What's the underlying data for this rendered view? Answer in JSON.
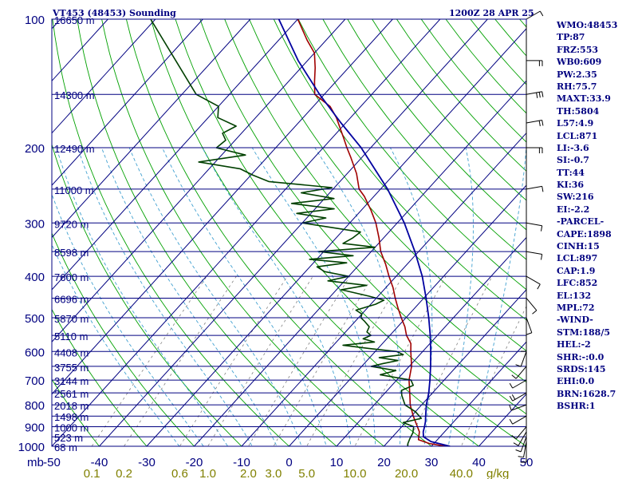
{
  "header": {
    "title_left": "VT453 (48453) Sounding",
    "title_right": "1200Z 28 APR 25"
  },
  "stats": [
    "WMO:48453",
    "TP:87",
    "FRZ:553",
    "WB0:609",
    "PW:2.35",
    "RH:75.7",
    "MAXT:33.9",
    "TH:5804",
    "L57:4.9",
    "LCL:871",
    "LI:-3.6",
    "SI:-0.7",
    "TT:44",
    "KI:36",
    "SW:216",
    "EI:-2.2",
    "-PARCEL-",
    "CAPE:1898",
    "CINH:15",
    "LCL:897",
    "CAP:1.9",
    "LFC:852",
    "EL:132",
    "MPL:72",
    "-WIND-",
    "STM:188/5",
    "HEL:-2",
    "SHR:-:0.0",
    "SRDS:145",
    "EHI:0.0",
    "BRN:1628.7",
    "BSHR:1"
  ],
  "colors": {
    "background": "#ffffff",
    "isobar": "#000080",
    "isotherm": "#000080",
    "dry_adiabat": "#00a000",
    "moist_adiabat": "#40a0d0",
    "mixing_ratio": "#808080",
    "temperature": "#a00000",
    "dewpoint": "#004000",
    "parcel": "#0000a0",
    "wind": "#000000",
    "label": "#000080",
    "mixing_label": "#808000"
  },
  "chart_data": {
    "type": "line",
    "title": "VT453 (48453) Sounding",
    "subtitle": "1200Z 28 APR 25",
    "xlabel_unit": "C",
    "ylabel_unit": "mb",
    "skew_t": true,
    "log_pressure_axis": true,
    "xlim": [
      -50,
      50
    ],
    "ylim": [
      1000,
      100
    ],
    "x_ticks": [
      -50,
      -40,
      -30,
      -20,
      -10,
      0,
      10,
      20,
      30,
      40,
      50
    ],
    "x_tick_labels": [
      "-50",
      "-40",
      "-30",
      "-20",
      "-10",
      "0",
      "10",
      "20",
      "30",
      "40",
      "50"
    ],
    "pressure_ticks": [
      100,
      200,
      300,
      400,
      500,
      600,
      700,
      800,
      900,
      1000
    ],
    "pressure_tick_labels": [
      "100",
      "200",
      "300",
      "400",
      "500",
      "600",
      "700",
      "800",
      "900",
      "1000"
    ],
    "height_levels": [
      {
        "p": 100,
        "label": "16650 m"
      },
      {
        "p": 150,
        "label": "14300 m"
      },
      {
        "p": 200,
        "label": "12490 m"
      },
      {
        "p": 250,
        "label": "11000 m"
      },
      {
        "p": 300,
        "label": "9720 m"
      },
      {
        "p": 350,
        "label": "8598 m"
      },
      {
        "p": 400,
        "label": "7600 m"
      },
      {
        "p": 450,
        "label": "6696 m"
      },
      {
        "p": 500,
        "label": "5870 m"
      },
      {
        "p": 550,
        "label": "5110 m"
      },
      {
        "p": 600,
        "label": "4408 m"
      },
      {
        "p": 650,
        "label": "3755 m"
      },
      {
        "p": 700,
        "label": "3144 m"
      },
      {
        "p": 750,
        "label": "2561 m"
      },
      {
        "p": 800,
        "label": "2018 m"
      },
      {
        "p": 850,
        "label": "1498 m"
      },
      {
        "p": 900,
        "label": "1000 m"
      },
      {
        "p": 950,
        "label": "523 m"
      },
      {
        "p": 1000,
        "label": "68 m"
      }
    ],
    "mixing_ratio_values": [
      0.1,
      0.2,
      0.6,
      1.0,
      2.0,
      3.0,
      5.0,
      10.0,
      20.0,
      40.0
    ],
    "mixing_ratio_labels": [
      "0.1",
      "0.2",
      "0.6",
      "1.0",
      "2.0",
      "3.0",
      "5.0",
      "10.0",
      "20.0",
      "40.0"
    ],
    "mixing_ratio_unit": "g/kg",
    "series": [
      {
        "key": "temperature",
        "points": [
          [
            1000,
            33.0
          ],
          [
            985,
            29.0
          ],
          [
            965,
            26.0
          ],
          [
            950,
            25.5
          ],
          [
            925,
            24.7
          ],
          [
            900,
            23.3
          ],
          [
            850,
            20.4
          ],
          [
            800,
            17.6
          ],
          [
            750,
            15.2
          ],
          [
            700,
            12.6
          ],
          [
            650,
            10.5
          ],
          [
            600,
            7.5
          ],
          [
            575,
            6.0
          ],
          [
            550,
            3.5
          ],
          [
            525,
            1.5
          ],
          [
            500,
            -1.0
          ],
          [
            475,
            -3.5
          ],
          [
            450,
            -6.0
          ],
          [
            425,
            -8.5
          ],
          [
            400,
            -11.5
          ],
          [
            375,
            -14.5
          ],
          [
            350,
            -18.0
          ],
          [
            325,
            -21.0
          ],
          [
            300,
            -24.5
          ],
          [
            280,
            -28.0
          ],
          [
            260,
            -32.0
          ],
          [
            250,
            -34.5
          ],
          [
            230,
            -38.0
          ],
          [
            210,
            -42.5
          ],
          [
            200,
            -45.0
          ],
          [
            190,
            -47.5
          ],
          [
            170,
            -53.0
          ],
          [
            160,
            -56.5
          ],
          [
            150,
            -62.0
          ],
          [
            140,
            -64.5
          ],
          [
            130,
            -67.0
          ],
          [
            120,
            -70.0
          ],
          [
            112,
            -74.0
          ],
          [
            100,
            -80.0
          ]
        ]
      },
      {
        "key": "dewpoint",
        "points": [
          [
            1000,
            25.0
          ],
          [
            985,
            24.5
          ],
          [
            960,
            24.0
          ],
          [
            930,
            23.5
          ],
          [
            900,
            22.5
          ],
          [
            880,
            19.5
          ],
          [
            860,
            22.5
          ],
          [
            830,
            20.0
          ],
          [
            800,
            16.5
          ],
          [
            760,
            14.0
          ],
          [
            740,
            13.0
          ],
          [
            720,
            14.5
          ],
          [
            700,
            13.0
          ],
          [
            680,
            5.5
          ],
          [
            665,
            8.0
          ],
          [
            650,
            2.0
          ],
          [
            640,
            4.0
          ],
          [
            630,
            6.5
          ],
          [
            620,
            2.0
          ],
          [
            610,
            6.5
          ],
          [
            600,
            4.5
          ],
          [
            590,
            -2.0
          ],
          [
            580,
            -8.0
          ],
          [
            570,
            -2.0
          ],
          [
            560,
            -5.0
          ],
          [
            550,
            -4.0
          ],
          [
            540,
            -5.5
          ],
          [
            525,
            -6.0
          ],
          [
            510,
            -8.0
          ],
          [
            500,
            -9.5
          ],
          [
            490,
            -10.0
          ],
          [
            480,
            -12.0
          ],
          [
            465,
            -9.0
          ],
          [
            455,
            -8.0
          ],
          [
            445,
            -12.0
          ],
          [
            430,
            -19.0
          ],
          [
            420,
            -14.5
          ],
          [
            410,
            -23.5
          ],
          [
            400,
            -20.0
          ],
          [
            390,
            -26.0
          ],
          [
            380,
            -28.5
          ],
          [
            372,
            -23.0
          ],
          [
            365,
            -31.5
          ],
          [
            358,
            -23.0
          ],
          [
            350,
            -31.0
          ],
          [
            342,
            -20.0
          ],
          [
            335,
            -27.5
          ],
          [
            325,
            -26.5
          ],
          [
            315,
            -26.0
          ],
          [
            300,
            -40.0
          ],
          [
            292,
            -36.0
          ],
          [
            285,
            -43.0
          ],
          [
            278,
            -36.0
          ],
          [
            270,
            -46.0
          ],
          [
            263,
            -38.0
          ],
          [
            255,
            -46.0
          ],
          [
            248,
            -40.5
          ],
          [
            240,
            -55.0
          ],
          [
            232,
            -59.5
          ],
          [
            224,
            -63.5
          ],
          [
            216,
            -73.5
          ],
          [
            208,
            -65.0
          ],
          [
            200,
            -72.5
          ],
          [
            192,
            -72.0
          ],
          [
            185,
            -74.0
          ],
          [
            178,
            -72.5
          ],
          [
            170,
            -78.0
          ],
          [
            160,
            -80.0
          ],
          [
            150,
            -87.0
          ],
          [
            100,
            -111.0
          ]
        ]
      },
      {
        "key": "parcel",
        "points": [
          [
            1000,
            33.9
          ],
          [
            975,
            29.0
          ],
          [
            950,
            26.5
          ],
          [
            925,
            25.5
          ],
          [
            900,
            24.8
          ],
          [
            875,
            24.0
          ],
          [
            850,
            23.0
          ],
          [
            800,
            21.0
          ],
          [
            750,
            19.2
          ],
          [
            700,
            17.0
          ],
          [
            650,
            14.5
          ],
          [
            600,
            11.7
          ],
          [
            550,
            8.5
          ],
          [
            500,
            4.8
          ],
          [
            450,
            0.5
          ],
          [
            400,
            -4.5
          ],
          [
            350,
            -10.8
          ],
          [
            300,
            -18.5
          ],
          [
            250,
            -28.5
          ],
          [
            200,
            -42.0
          ],
          [
            175,
            -51.0
          ],
          [
            150,
            -61.0
          ],
          [
            125,
            -72.0
          ],
          [
            100,
            -84.0
          ]
        ]
      }
    ],
    "wind_barbs": [
      {
        "p": 1000,
        "dir": 180,
        "spd": 5
      },
      {
        "p": 975,
        "dir": 190,
        "spd": 5
      },
      {
        "p": 950,
        "dir": 200,
        "spd": 5
      },
      {
        "p": 925,
        "dir": 210,
        "spd": 5
      },
      {
        "p": 900,
        "dir": 220,
        "spd": 5
      },
      {
        "p": 850,
        "dir": 240,
        "spd": 5
      },
      {
        "p": 800,
        "dir": 250,
        "spd": 5
      },
      {
        "p": 750,
        "dir": 240,
        "spd": 10
      },
      {
        "p": 700,
        "dir": 240,
        "spd": 5
      },
      {
        "p": 650,
        "dir": 220,
        "spd": 5
      },
      {
        "p": 600,
        "dir": 200,
        "spd": 5
      },
      {
        "p": 550,
        "dir": 180,
        "spd": 5
      },
      {
        "p": 500,
        "dir": 160,
        "spd": 5
      },
      {
        "p": 450,
        "dir": 140,
        "spd": 5
      },
      {
        "p": 400,
        "dir": 120,
        "spd": 5
      },
      {
        "p": 350,
        "dir": 100,
        "spd": 5
      },
      {
        "p": 300,
        "dir": 100,
        "spd": 5
      },
      {
        "p": 250,
        "dir": 80,
        "spd": 5
      },
      {
        "p": 200,
        "dir": 90,
        "spd": 10
      },
      {
        "p": 175,
        "dir": 80,
        "spd": 10
      },
      {
        "p": 150,
        "dir": 80,
        "spd": 15
      },
      {
        "p": 125,
        "dir": 90,
        "spd": 10
      },
      {
        "p": 100,
        "dir": 60,
        "spd": 5
      }
    ]
  }
}
